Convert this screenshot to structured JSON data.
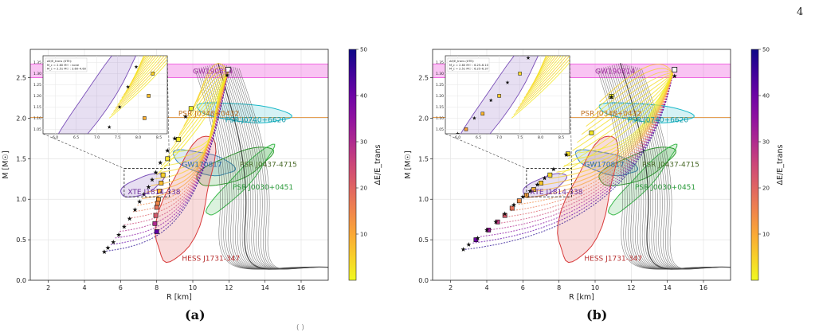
{
  "page": {
    "number": "4",
    "footer_fragment": "(   )"
  },
  "colors": {
    "gw190814": "#ee55dd",
    "psr_j0348": "#e08a2c",
    "psr_j0740": "#18b8c8",
    "gw170817": "#3a86c4",
    "psr_j0437": "#2a9a2a",
    "psr_j0030": "#39b84a",
    "xte": "#7a4fb8",
    "hess": "#d83a3a",
    "cold_eos": "#555555"
  },
  "chart_data": [
    {
      "panel": "a",
      "caption": "(a)",
      "type": "line",
      "xlabel": "R [km]",
      "ylabel": "M [M☉]",
      "xlim": [
        1,
        17.5
      ],
      "ylim": [
        0,
        2.85
      ],
      "xticks": [
        "2",
        "4",
        "6",
        "8",
        "10",
        "12",
        "14",
        "16"
      ],
      "yticks": [
        "0.0",
        "0.5",
        "1.0",
        "1.5",
        "2.0",
        "2.5"
      ],
      "grid": true,
      "colorbar": {
        "label": "ΔE/E_trans",
        "range": [
          0,
          50
        ],
        "ticks": [
          "10",
          "20",
          "30",
          "40",
          "50"
        ],
        "colormap": "plasma_r"
      },
      "regions": {
        "gw190814": {
          "label": "GW190814",
          "band": [
            2.5,
            2.67
          ]
        },
        "psr_j0348": {
          "label": "PSR J0348+0432",
          "band_center": 2.01
        },
        "psr_j0740": {
          "label": "PSR J0740+6620"
        },
        "gw170817": {
          "label": "GW170817"
        },
        "psr_j0437": {
          "label": "PSR J0437-4715"
        },
        "psr_j0030": {
          "label": "PSR J0030+0451"
        },
        "xte": {
          "label": "XTE J1814-338"
        },
        "hess": {
          "label": "HESS J1731-347"
        }
      },
      "inset": {
        "legend_title": "ΔE/E_trans (XTE):",
        "legend_lines": [
          "M_c = 2.60 M☉ : none",
          "M_c = 2.51 M☉ : 3.60–4.60"
        ],
        "xticks": [
          "6.0",
          "6.5",
          "7.0",
          "7.5",
          "8.0",
          "8.5"
        ],
        "yticks": [
          "1.05",
          "1.10",
          "1.15",
          "1.20",
          "1.25",
          "1.30",
          "1.35"
        ],
        "xlim": [
          5.7,
          8.7
        ],
        "ylim": [
          1.03,
          1.38
        ]
      },
      "star_markers": [
        {
          "x": 5.1,
          "y": 0.35
        },
        {
          "x": 5.3,
          "y": 0.4
        },
        {
          "x": 5.6,
          "y": 0.47
        },
        {
          "x": 5.9,
          "y": 0.56
        },
        {
          "x": 6.2,
          "y": 0.66
        },
        {
          "x": 6.5,
          "y": 0.76
        },
        {
          "x": 6.8,
          "y": 0.87
        },
        {
          "x": 7.05,
          "y": 0.97
        },
        {
          "x": 7.3,
          "y": 1.06
        },
        {
          "x": 7.55,
          "y": 1.15
        },
        {
          "x": 7.75,
          "y": 1.24
        },
        {
          "x": 7.95,
          "y": 1.33
        },
        {
          "x": 8.2,
          "y": 1.45
        },
        {
          "x": 8.6,
          "y": 1.6
        },
        {
          "x": 9.0,
          "y": 1.75
        },
        {
          "x": 9.6,
          "y": 2.02
        },
        {
          "x": 11.9,
          "y": 2.53
        }
      ],
      "square_markers": [
        {
          "x": 8.0,
          "y": 0.6,
          "dE": 42
        },
        {
          "x": 7.9,
          "y": 0.7,
          "dE": 30
        },
        {
          "x": 7.95,
          "y": 0.8,
          "dE": 22
        },
        {
          "x": 8.0,
          "y": 0.9,
          "dE": 18
        },
        {
          "x": 8.05,
          "y": 0.95,
          "dE": 15
        },
        {
          "x": 8.1,
          "y": 1.0,
          "dE": 12
        },
        {
          "x": 8.15,
          "y": 1.1,
          "dE": 9
        },
        {
          "x": 8.25,
          "y": 1.2,
          "dE": 7
        },
        {
          "x": 8.35,
          "y": 1.3,
          "dE": 5
        },
        {
          "x": 8.6,
          "y": 1.5,
          "dE": 3
        },
        {
          "x": 9.2,
          "y": 1.74,
          "dE": 2
        },
        {
          "x": 9.9,
          "y": 2.12,
          "dE": 1
        }
      ],
      "hybrid_start": {
        "x": 5.2,
        "y": 0.36
      },
      "hybrid_end": {
        "x": 11.95,
        "y": 2.57
      },
      "hybrid_dE": [
        48,
        42,
        36,
        30,
        25,
        21,
        17,
        14,
        11,
        9,
        7,
        5,
        4,
        3,
        2,
        1
      ],
      "mc_end": {
        "x": 11.95,
        "y": 2.6
      }
    },
    {
      "panel": "b",
      "caption": "(b)",
      "type": "line",
      "xlabel": "R [km]",
      "ylabel": "M [M☉]",
      "xlim": [
        1,
        17.5
      ],
      "ylim": [
        0,
        2.85
      ],
      "xticks": [
        "2",
        "4",
        "6",
        "8",
        "10",
        "12",
        "14",
        "16"
      ],
      "yticks": [
        "0.0",
        "0.5",
        "1.0",
        "1.5",
        "2.0",
        "2.5"
      ],
      "grid": true,
      "colorbar": {
        "label": "ΔE/E_trans",
        "range": [
          0,
          50
        ],
        "ticks": [
          "10",
          "20",
          "30",
          "40",
          "50"
        ],
        "colormap": "plasma_r"
      },
      "regions": {
        "gw190814": {
          "label": "GW190814",
          "band": [
            2.5,
            2.67
          ]
        },
        "psr_j0348": {
          "label": "PSR J0348+0432",
          "band_center": 2.01
        },
        "psr_j0740": {
          "label": "PSR J0740+6620"
        },
        "gw170817": {
          "label": "GW170817"
        },
        "psr_j0437": {
          "label": "PSR J0437-4715"
        },
        "psr_j0030": {
          "label": "PSR J0030+0451"
        },
        "xte": {
          "label": "XTE J1814-338"
        },
        "hess": {
          "label": "HESS J1731-347"
        }
      },
      "inset": {
        "legend_title": "ΔE/E_trans (XTE):",
        "legend_lines": [
          "M_c = 2.60 M☉ : 6.25–6.10",
          "M_c = 2.51 M☉ : 6.25–6.37"
        ],
        "xticks": [
          "6.0",
          "6.5",
          "7.0",
          "7.5",
          "8.0",
          "8.5"
        ],
        "yticks": [
          "1.05",
          "1.10",
          "1.15",
          "1.20",
          "1.25",
          "1.30",
          "1.35"
        ],
        "xlim": [
          5.7,
          8.7
        ],
        "ylim": [
          1.03,
          1.38
        ]
      },
      "star_markers": [
        {
          "x": 2.7,
          "y": 0.38
        },
        {
          "x": 3.0,
          "y": 0.44
        },
        {
          "x": 3.5,
          "y": 0.52
        },
        {
          "x": 4.0,
          "y": 0.62
        },
        {
          "x": 4.5,
          "y": 0.72
        },
        {
          "x": 5.0,
          "y": 0.82
        },
        {
          "x": 5.5,
          "y": 0.93
        },
        {
          "x": 6.0,
          "y": 1.03
        },
        {
          "x": 6.4,
          "y": 1.1
        },
        {
          "x": 6.8,
          "y": 1.18
        },
        {
          "x": 7.2,
          "y": 1.26
        },
        {
          "x": 7.7,
          "y": 1.37
        },
        {
          "x": 8.4,
          "y": 1.55
        },
        {
          "x": 10.9,
          "y": 2.26
        },
        {
          "x": 14.4,
          "y": 2.52
        }
      ],
      "square_markers": [
        {
          "x": 3.4,
          "y": 0.5,
          "dE": 40
        },
        {
          "x": 4.1,
          "y": 0.62,
          "dE": 33
        },
        {
          "x": 4.6,
          "y": 0.72,
          "dE": 27
        },
        {
          "x": 5.0,
          "y": 0.8,
          "dE": 22
        },
        {
          "x": 5.4,
          "y": 0.89,
          "dE": 18
        },
        {
          "x": 5.8,
          "y": 0.98,
          "dE": 14
        },
        {
          "x": 6.2,
          "y": 1.05,
          "dE": 11
        },
        {
          "x": 6.6,
          "y": 1.12,
          "dE": 8
        },
        {
          "x": 7.0,
          "y": 1.2,
          "dE": 6
        },
        {
          "x": 7.5,
          "y": 1.3,
          "dE": 4
        },
        {
          "x": 8.5,
          "y": 1.56,
          "dE": 3
        },
        {
          "x": 9.8,
          "y": 1.82,
          "dE": 2
        },
        {
          "x": 10.9,
          "y": 2.27,
          "dE": 1
        }
      ],
      "hybrid_start": {
        "x": 2.8,
        "y": 0.38
      },
      "hybrid_end": {
        "x": 14.3,
        "y": 2.55
      },
      "hybrid_dE": [
        48,
        42,
        36,
        30,
        25,
        21,
        17,
        14,
        11,
        9,
        7,
        5,
        4,
        3,
        2,
        1
      ],
      "mc_end": {
        "x": 14.4,
        "y": 2.6
      }
    }
  ]
}
